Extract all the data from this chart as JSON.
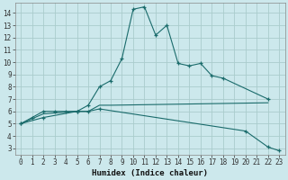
{
  "title": "",
  "xlabel": "Humidex (Indice chaleur)",
  "bg_color": "#cce8ec",
  "grid_color": "#aacccc",
  "line_color": "#1a6b6b",
  "xlim": [
    -0.5,
    23.5
  ],
  "ylim": [
    2.5,
    14.8
  ],
  "xticks": [
    0,
    1,
    2,
    3,
    4,
    5,
    6,
    7,
    8,
    9,
    10,
    11,
    12,
    13,
    14,
    15,
    16,
    17,
    18,
    19,
    20,
    21,
    22,
    23
  ],
  "yticks": [
    3,
    4,
    5,
    6,
    7,
    8,
    9,
    10,
    11,
    12,
    13,
    14
  ],
  "l1x": [
    0,
    1,
    2,
    3,
    4,
    5,
    6,
    7,
    8,
    9,
    10,
    11,
    12,
    13,
    14,
    15,
    16,
    17,
    18,
    22
  ],
  "l1y": [
    5.0,
    5.5,
    6.0,
    6.0,
    6.0,
    6.0,
    6.5,
    8.0,
    8.5,
    10.3,
    14.3,
    14.5,
    12.2,
    13.0,
    9.9,
    9.7,
    9.9,
    8.9,
    8.7,
    7.0
  ],
  "l2x": [
    0,
    2,
    5,
    6,
    7,
    8,
    22
  ],
  "l2y": [
    5.0,
    5.8,
    6.0,
    6.0,
    6.5,
    6.5,
    6.7
  ],
  "l3x": [
    0,
    2,
    5,
    6,
    7,
    20,
    22,
    23
  ],
  "l3y": [
    5.0,
    5.5,
    6.0,
    6.0,
    6.2,
    4.4,
    3.1,
    2.8
  ]
}
